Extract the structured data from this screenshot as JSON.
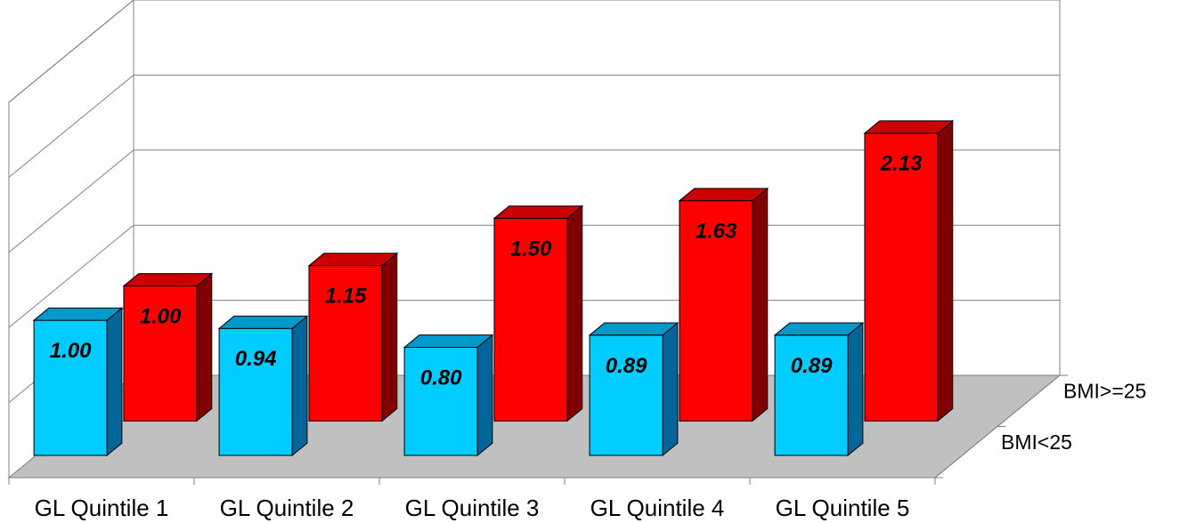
{
  "chart_data": {
    "type": "bar",
    "style": "3d-clustered-depth",
    "categories": [
      "GL Quintile 1",
      "GL Quintile 2",
      "GL Quintile 3",
      "GL Quintile 4",
      "GL Quintile 5"
    ],
    "series": [
      {
        "name": "BMI<25",
        "values": [
          1.0,
          0.94,
          0.8,
          0.89,
          0.89
        ],
        "labels": [
          "1.00",
          "0.94",
          "0.80",
          "0.89",
          "0.89"
        ],
        "color": "#00ccff",
        "side_color": "#006699",
        "top_color": "#0099cc"
      },
      {
        "name": "BMI>=25",
        "values": [
          1.0,
          1.15,
          1.5,
          1.63,
          2.13
        ],
        "labels": [
          "1.00",
          "1.15",
          "1.50",
          "1.63",
          "2.13"
        ],
        "color": "#ff0000",
        "side_color": "#800000",
        "top_color": "#cc0000"
      }
    ],
    "ylim": [
      0,
      2.5
    ],
    "gridlines": true,
    "legend": "right-depth-labels",
    "wall_color": "#ffffff",
    "floor_color": "#c0c0c0"
  }
}
